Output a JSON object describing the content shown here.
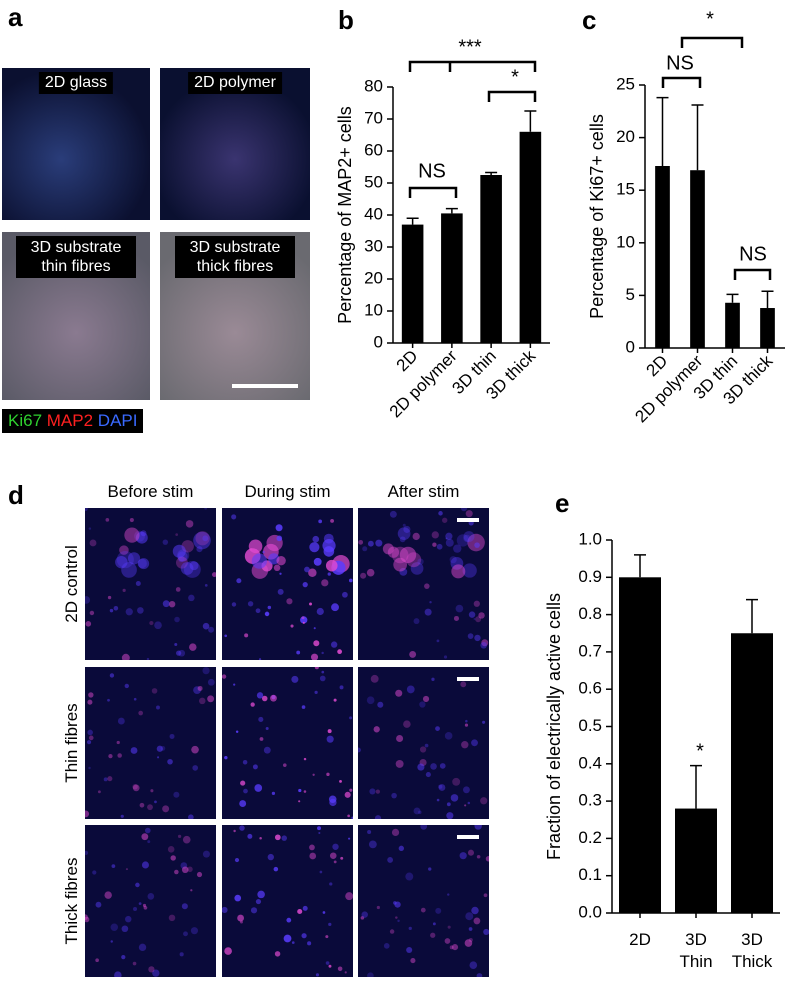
{
  "panel_a": {
    "label": "a",
    "images": [
      "2D glass",
      "2D polymer",
      "3D substrate thin fibres",
      "3D substrate thick fibres"
    ],
    "legend": [
      "Ki67",
      "MAP2",
      "DAPI"
    ]
  },
  "panel_d": {
    "label": "d",
    "columns": [
      "Before stim",
      "During stim",
      "After stim"
    ],
    "rows": [
      "2D control",
      "Thin fibres",
      "Thick fibres"
    ]
  },
  "chart_data": [
    {
      "type": "bar",
      "panel_label": "b",
      "y_label": "Percentage of MAP2+ cells",
      "categories": [
        "2D",
        "2D polymer",
        "3D thin",
        "3D thick"
      ],
      "values": [
        37,
        40.5,
        52.5,
        66
      ],
      "errors": [
        2,
        1.5,
        0.8,
        6.5
      ],
      "color": "#000000",
      "ylim": [
        0,
        80
      ],
      "yticks": [
        0,
        10,
        20,
        30,
        40,
        50,
        60,
        70,
        80
      ],
      "annotations": [
        "***",
        "*",
        "NS"
      ]
    },
    {
      "type": "bar",
      "panel_label": "c",
      "y_label": "Percentage of Ki67+ cells",
      "categories": [
        "2D",
        "2D polymer",
        "3D thin",
        "3D thick"
      ],
      "values": [
        17.3,
        16.9,
        4.3,
        3.8
      ],
      "errors": [
        6.5,
        6.2,
        0.8,
        1.6
      ],
      "color": "#000000",
      "ylim": [
        0,
        25
      ],
      "yticks": [
        0,
        5,
        10,
        15,
        20,
        25
      ],
      "annotations": [
        "*",
        "NS",
        "NS"
      ]
    },
    {
      "type": "bar",
      "panel_label": "e",
      "y_label": "Fraction of electrically active cells",
      "categories": [
        "2D",
        "3D Thin",
        "3D Thick"
      ],
      "values": [
        0.9,
        0.28,
        0.75
      ],
      "errors": [
        0.06,
        0.115,
        0.09
      ],
      "color": "#000000",
      "ylim": [
        0,
        1.0
      ],
      "yticks": [
        {
          "value": 0,
          "label": "0.0"
        },
        0.1,
        0.2,
        0.3,
        0.4,
        0.5,
        0.6,
        0.7,
        0.8,
        0.9,
        {
          "value": 1,
          "label": "1.0"
        }
      ],
      "annotations": [
        "*"
      ]
    }
  ]
}
